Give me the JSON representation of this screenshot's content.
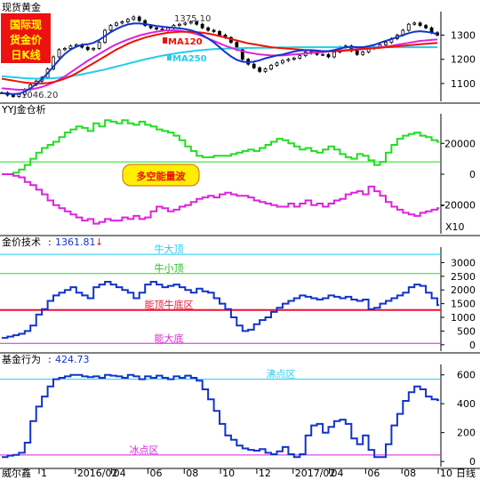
{
  "chart_data": [
    {
      "type": "candlestick",
      "title": "现货黄金",
      "badge_text": [
        "国际现",
        "货金价",
        "日K线"
      ],
      "y_ticks": [
        1100,
        1200,
        1300
      ],
      "ylim": [
        1030,
        1390
      ],
      "annotations": {
        "high_label": "1375.10",
        "high_value": 1375.1,
        "low_label": "1046.20",
        "low_value": 1046.2
      },
      "ma_labels": [
        {
          "name": "MA120",
          "color": "#ee1100"
        },
        {
          "name": "MA250",
          "color": "#22ccee"
        }
      ],
      "close_series": [
        1062,
        1052,
        1046.2,
        1055,
        1075,
        1095,
        1110,
        1125,
        1160,
        1210,
        1240,
        1245,
        1255,
        1260,
        1250,
        1240,
        1245,
        1270,
        1320,
        1340,
        1350,
        1355,
        1365,
        1375.1,
        1360,
        1340,
        1330,
        1325,
        1320,
        1330,
        1340,
        1345,
        1350,
        1355,
        1345,
        1330,
        1320,
        1315,
        1300,
        1290,
        1270,
        1240,
        1200,
        1180,
        1165,
        1150,
        1160,
        1175,
        1185,
        1195,
        1200,
        1205,
        1215,
        1230,
        1225,
        1220,
        1220,
        1210,
        1230,
        1250,
        1255,
        1235,
        1220,
        1230,
        1245,
        1250,
        1260,
        1270,
        1285,
        1300,
        1320,
        1345,
        1350,
        1340,
        1330,
        1310,
        1300
      ],
      "ma_fast": [
        1060,
        1058,
        1056,
        1058,
        1066,
        1080,
        1098,
        1118,
        1142,
        1170,
        1198,
        1222,
        1240,
        1252,
        1260,
        1262,
        1268,
        1280,
        1296,
        1312,
        1325,
        1336,
        1344,
        1348,
        1348,
        1346,
        1342,
        1338,
        1335,
        1332,
        1330,
        1328,
        1325,
        1320,
        1312,
        1300,
        1286,
        1270,
        1250,
        1230,
        1212,
        1198,
        1190,
        1188,
        1190,
        1196,
        1204,
        1210,
        1216,
        1220,
        1226,
        1232,
        1236,
        1238,
        1238,
        1236,
        1234,
        1234,
        1238,
        1244,
        1250,
        1252,
        1250,
        1250,
        1254,
        1260,
        1268,
        1276,
        1284,
        1292,
        1300,
        1308,
        1314,
        1316,
        1314,
        1310,
        1304
      ],
      "ma_slow": [
        1080,
        1078,
        1076,
        1074,
        1074,
        1076,
        1080,
        1086,
        1094,
        1104,
        1116,
        1130,
        1146,
        1162,
        1178,
        1194,
        1208,
        1222,
        1236,
        1250,
        1262,
        1272,
        1282,
        1290,
        1298,
        1304,
        1310,
        1314,
        1318,
        1320,
        1320,
        1318,
        1314,
        1310,
        1304,
        1296,
        1286,
        1276,
        1266,
        1256,
        1248,
        1240,
        1234,
        1228,
        1224,
        1220,
        1218,
        1216,
        1216,
        1216,
        1218,
        1220,
        1222,
        1224,
        1226,
        1228,
        1230,
        1232,
        1234,
        1236,
        1238,
        1240,
        1242,
        1244,
        1246,
        1248,
        1250,
        1252,
        1256,
        1260,
        1264,
        1268,
        1272,
        1276,
        1278,
        1280,
        1282
      ],
      "ma120": [
        1120,
        1116,
        1112,
        1108,
        1104,
        1102,
        1100,
        1100,
        1102,
        1106,
        1112,
        1120,
        1130,
        1142,
        1156,
        1170,
        1184,
        1198,
        1212,
        1226,
        1240,
        1252,
        1264,
        1274,
        1282,
        1290,
        1296,
        1302,
        1306,
        1310,
        1312,
        1314,
        1314,
        1314,
        1312,
        1310,
        1306,
        1302,
        1296,
        1290,
        1284,
        1278,
        1272,
        1266,
        1262,
        1258,
        1254,
        1250,
        1248,
        1246,
        1244,
        1242,
        1240,
        1238,
        1236,
        1234,
        1234,
        1234,
        1234,
        1234,
        1236,
        1238,
        1240,
        1242,
        1244,
        1246,
        1248,
        1250,
        1252,
        1254,
        1256,
        1258,
        1260,
        1262,
        1264,
        1266,
        1268
      ],
      "ma250": [
        1130,
        1128,
        1126,
        1124,
        1122,
        1121,
        1120,
        1120,
        1121,
        1122,
        1124,
        1127,
        1130,
        1134,
        1138,
        1143,
        1148,
        1153,
        1158,
        1164,
        1170,
        1176,
        1182,
        1188,
        1194,
        1200,
        1205,
        1210,
        1215,
        1219,
        1223,
        1227,
        1230,
        1233,
        1236,
        1238,
        1240,
        1242,
        1243,
        1244,
        1245,
        1246,
        1246,
        1247,
        1247,
        1248,
        1248,
        1248,
        1249,
        1249,
        1249,
        1250,
        1250,
        1250,
        1250,
        1250,
        1250,
        1250,
        1250,
        1250,
        1250,
        1250,
        1250,
        1250,
        1250,
        1250,
        1250,
        1250,
        1250,
        1250,
        1250,
        1250,
        1250,
        1250,
        1250,
        1250,
        1250
      ]
    },
    {
      "type": "line",
      "title": "YYJ金仓析",
      "badge_text": "多空能量波",
      "y_ticks": [
        20000,
        0,
        -20000
      ],
      "ylim": [
        -38000,
        38000
      ],
      "reference_value": 8000,
      "unit_label": "X10",
      "series": [
        {
          "color": "#22dd22",
          "values": [
            0,
            0,
            1000,
            3000,
            6000,
            10000,
            14000,
            17000,
            19000,
            21000,
            24000,
            27000,
            29000,
            31000,
            30000,
            28000,
            33000,
            31000,
            35000,
            34000,
            33000,
            35000,
            33000,
            32000,
            34000,
            32000,
            31000,
            29000,
            28000,
            27000,
            25000,
            22000,
            18000,
            15000,
            12000,
            11000,
            11000,
            12000,
            12000,
            12000,
            13000,
            14000,
            15000,
            16000,
            15000,
            17000,
            19000,
            21000,
            23000,
            22000,
            20000,
            18000,
            16000,
            17000,
            15000,
            14000,
            16000,
            18000,
            16000,
            13000,
            11000,
            10000,
            13000,
            12000,
            9000,
            6000,
            8000,
            14000,
            19000,
            23000,
            25000,
            26000,
            27000,
            25000,
            24000,
            22000,
            21000
          ]
        },
        {
          "color": "#dd22dd",
          "values": [
            0,
            0,
            -1000,
            -2000,
            -5000,
            -7000,
            -10000,
            -13000,
            -17000,
            -20000,
            -22000,
            -24000,
            -26000,
            -28000,
            -30000,
            -29000,
            -32000,
            -31000,
            -29000,
            -30000,
            -30000,
            -28000,
            -29000,
            -27000,
            -29000,
            -28000,
            -24000,
            -21000,
            -22000,
            -24000,
            -23000,
            -21000,
            -20000,
            -18000,
            -16000,
            -15000,
            -14000,
            -15000,
            -13000,
            -12000,
            -13000,
            -14000,
            -14000,
            -15000,
            -17000,
            -18000,
            -19000,
            -20000,
            -21000,
            -21000,
            -19000,
            -21000,
            -19000,
            -17000,
            -20000,
            -19000,
            -21000,
            -19000,
            -17000,
            -16000,
            -13000,
            -12000,
            -11000,
            -13000,
            -8000,
            -11000,
            -14000,
            -18000,
            -21000,
            -23000,
            -25000,
            -26000,
            -27000,
            -25000,
            -24000,
            -23000,
            -22000
          ]
        }
      ]
    },
    {
      "type": "line",
      "title": "金价技术：1361.81",
      "title_label": "金价技术",
      "title_value": "1361.81",
      "trend_marker": "↓",
      "y_ticks": [
        3000,
        2500,
        2000,
        1500,
        1000,
        500,
        0
      ],
      "ylim": [
        -200,
        3500
      ],
      "reference_lines": [
        {
          "label": "牛大顶",
          "value": 3300,
          "color": "#22ccee"
        },
        {
          "label": "牛小顶",
          "value": 2600,
          "color": "#22dd22"
        },
        {
          "label": "能顶牛底区",
          "value": 1270,
          "color": "#ee1133"
        },
        {
          "label": "能大底",
          "value": 50,
          "color": "#dd22dd"
        }
      ],
      "series": [
        {
          "color": "#1133cc",
          "values": [
            250,
            300,
            350,
            400,
            500,
            700,
            1100,
            1300,
            1600,
            1800,
            1900,
            2000,
            2100,
            1900,
            1800,
            1700,
            2100,
            2200,
            2300,
            2200,
            2100,
            2000,
            1900,
            1700,
            1900,
            2200,
            2300,
            2200,
            2100,
            2150,
            2200,
            2100,
            2000,
            1900,
            2050,
            1950,
            1900,
            1700,
            1500,
            1300,
            1000,
            700,
            500,
            550,
            750,
            900,
            1000,
            1200,
            1350,
            1500,
            1600,
            1700,
            1800,
            1750,
            1700,
            1650,
            1700,
            1800,
            1750,
            1700,
            1750,
            1650,
            1600,
            1650,
            1300,
            1350,
            1500,
            1600,
            1700,
            1800,
            1900,
            2100,
            2200,
            2150,
            1900,
            1700,
            1450
          ]
        }
      ]
    },
    {
      "type": "line",
      "title": "基金行为：424.73",
      "title_label": "基金行为",
      "title_value": "424.73",
      "y_ticks": [
        600,
        400,
        200,
        0
      ],
      "ylim": [
        -30,
        660
      ],
      "reference_lines": [
        {
          "label": "沸点区",
          "value": 570,
          "color": "#22ccee"
        },
        {
          "label": "冰点区",
          "value": 45,
          "color": "#dd22dd"
        }
      ],
      "series": [
        {
          "color": "#1133cc",
          "values": [
            30,
            40,
            45,
            60,
            130,
            280,
            380,
            450,
            520,
            570,
            580,
            590,
            600,
            600,
            590,
            585,
            590,
            580,
            600,
            595,
            590,
            580,
            600,
            590,
            570,
            590,
            580,
            595,
            580,
            570,
            590,
            580,
            595,
            580,
            560,
            500,
            430,
            350,
            260,
            180,
            150,
            110,
            90,
            80,
            75,
            85,
            60,
            50,
            70,
            100,
            50,
            30,
            50,
            180,
            250,
            260,
            200,
            240,
            280,
            290,
            260,
            160,
            120,
            180,
            80,
            30,
            30,
            120,
            250,
            330,
            420,
            480,
            520,
            500,
            450,
            430,
            425
          ]
        }
      ]
    }
  ],
  "x_axis": {
    "label_prefix": "威尔鑫",
    "ticks": [
      "1",
      "2016/02",
      "04",
      "06",
      "08",
      "10",
      "12",
      "2017/02",
      "04",
      "06",
      "08",
      "10"
    ],
    "suffix": "日线"
  }
}
